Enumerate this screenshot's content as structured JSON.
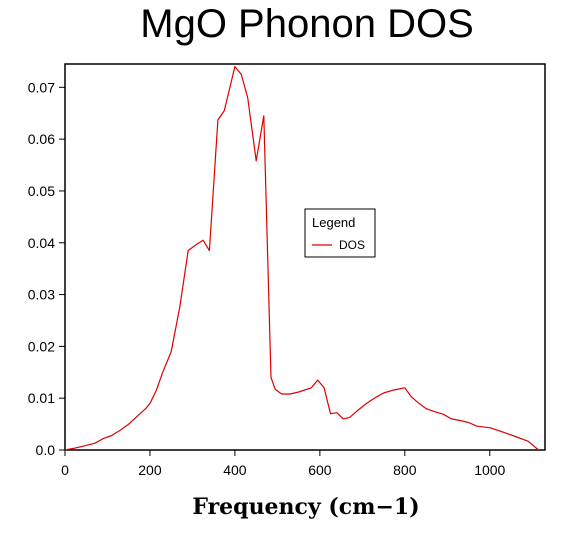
{
  "chart_data": {
    "type": "line",
    "title": "MgO Phonon DOS",
    "xlabel": "Frequency (cm−1)",
    "ylabel": "",
    "xlim": [
      0,
      1130
    ],
    "ylim": [
      0,
      0.0745
    ],
    "x_ticks": [
      0,
      200,
      400,
      600,
      800,
      1000
    ],
    "x_tick_labels": [
      "0",
      "200",
      "400",
      "600",
      "800",
      "1000"
    ],
    "y_ticks": [
      0.0,
      0.01,
      0.02,
      0.03,
      0.04,
      0.05,
      0.06,
      0.07
    ],
    "y_tick_labels": [
      "0.0",
      "0.01",
      "0.02",
      "0.03",
      "0.04",
      "0.05",
      "0.06",
      "0.07"
    ],
    "grid": false,
    "legend": {
      "title": "Legend",
      "placement": "center-right"
    },
    "series": [
      {
        "name": "DOS",
        "color": "#dd0000",
        "x": [
          0,
          20,
          40,
          70,
          90,
          110,
          130,
          150,
          170,
          190,
          200,
          215,
          230,
          250,
          270,
          290,
          310,
          325,
          340,
          360,
          375,
          400,
          415,
          430,
          450,
          468,
          485,
          495,
          510,
          530,
          550,
          580,
          595,
          610,
          625,
          640,
          655,
          670,
          690,
          710,
          730,
          750,
          770,
          800,
          815,
          830,
          850,
          870,
          890,
          910,
          930,
          950,
          970,
          1000,
          1030,
          1060,
          1090,
          1115
        ],
        "y": [
          0.0,
          0.0003,
          0.0007,
          0.0013,
          0.0022,
          0.0028,
          0.0038,
          0.005,
          0.0065,
          0.008,
          0.009,
          0.0115,
          0.015,
          0.019,
          0.0275,
          0.0385,
          0.0397,
          0.0405,
          0.0385,
          0.0637,
          0.0655,
          0.074,
          0.0725,
          0.068,
          0.0558,
          0.0645,
          0.014,
          0.0117,
          0.0108,
          0.0108,
          0.0112,
          0.012,
          0.0135,
          0.012,
          0.007,
          0.0072,
          0.006,
          0.0063,
          0.0077,
          0.009,
          0.0101,
          0.011,
          0.0115,
          0.012,
          0.0103,
          0.0092,
          0.008,
          0.0074,
          0.0069,
          0.006,
          0.0057,
          0.0053,
          0.0046,
          0.0043,
          0.0035,
          0.0026,
          0.0017,
          0.0
        ]
      }
    ]
  }
}
